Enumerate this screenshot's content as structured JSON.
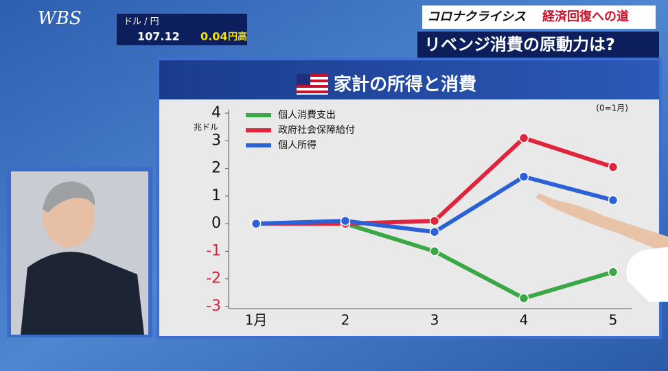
{
  "header": {
    "logo": "WBS",
    "currency_pair": "ドル / 円",
    "rate": "107.12",
    "change": "0.04",
    "change_label": "円高",
    "series_title": "コロナクライシス",
    "series_subtitle": "経済回復への道",
    "headline": "リベンジ消費の原動力は?"
  },
  "chart_data": {
    "type": "line",
    "title": "家計の所得と消費",
    "y_unit": "兆ドル",
    "annotation": "(0=1月)",
    "categories": [
      "1月",
      "2",
      "3",
      "4",
      "5"
    ],
    "series": [
      {
        "name": "個人消費支出",
        "color": "#3aa845",
        "values": [
          0,
          0,
          -1,
          -2.7,
          -1.75
        ]
      },
      {
        "name": "政府社会保障給付",
        "color": "#e0243c",
        "values": [
          0,
          0,
          0.1,
          3.1,
          2.05
        ]
      },
      {
        "name": "個人所得",
        "color": "#2a62d6",
        "values": [
          0,
          0.1,
          -0.3,
          1.7,
          0.85
        ]
      }
    ],
    "ylim": [
      -3,
      4
    ],
    "yticks": [
      -3,
      -2,
      -1,
      0,
      1,
      2,
      3,
      4
    ],
    "grid": false,
    "negative_tick_color": "#d8203a",
    "tick_color": "#111111"
  }
}
